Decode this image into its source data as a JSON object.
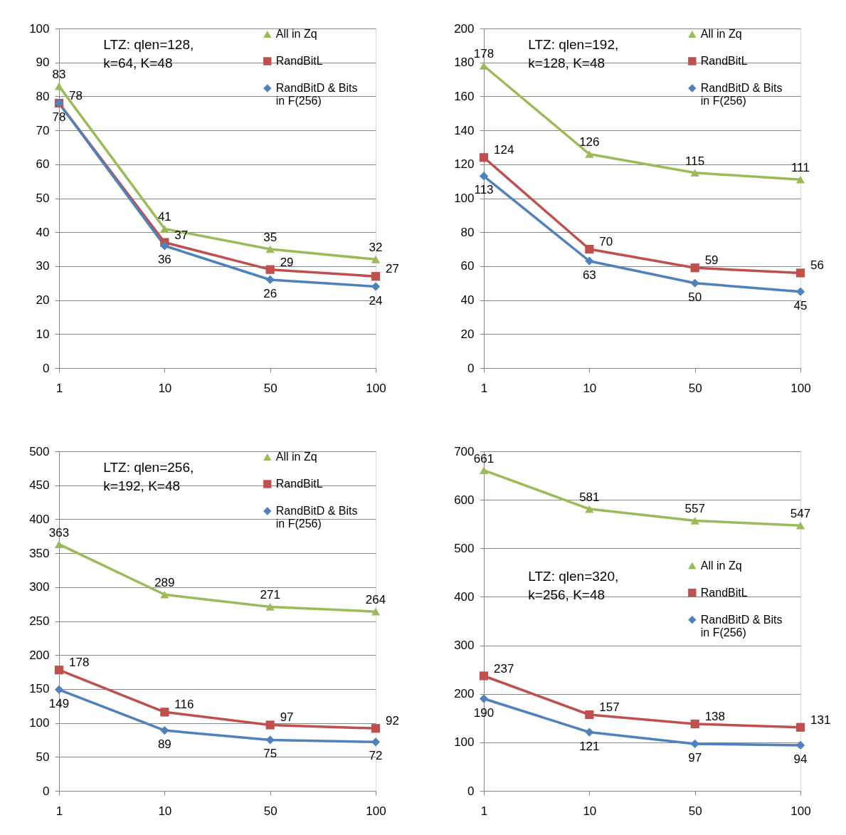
{
  "chart_data": [
    {
      "type": "line",
      "categories": [
        "1",
        "10",
        "50",
        "100"
      ],
      "series": [
        {
          "name": "All in Zq",
          "color": "#9bbb59",
          "marker": "triangle",
          "values": [
            83,
            41,
            35,
            32
          ]
        },
        {
          "name": "RandBitL",
          "color": "#c0504d",
          "marker": "square",
          "values": [
            78,
            37,
            29,
            27
          ]
        },
        {
          "name": "RandBitD & Bits in F(256)",
          "color": "#4f81bd",
          "marker": "diamond",
          "values": [
            78,
            36,
            26,
            24
          ]
        }
      ],
      "ylim": [
        0,
        100
      ],
      "yticks": [
        0,
        10,
        20,
        30,
        40,
        50,
        60,
        70,
        80,
        90,
        100
      ],
      "grid": "y",
      "legend": "top right",
      "data_labels": true,
      "annotations": [
        "LTZ: qlen=128, k=64, K=48"
      ]
    },
    {
      "type": "line",
      "categories": [
        "1",
        "10",
        "50",
        "100"
      ],
      "series": [
        {
          "name": "All in Zq",
          "color": "#9bbb59",
          "marker": "triangle",
          "values": [
            178,
            126,
            115,
            111
          ]
        },
        {
          "name": "RandBitL",
          "color": "#c0504d",
          "marker": "square",
          "values": [
            124,
            70,
            59,
            56
          ]
        },
        {
          "name": "RandBitD & Bits in F(256)",
          "color": "#4f81bd",
          "marker": "diamond",
          "values": [
            113,
            63,
            50,
            45
          ]
        }
      ],
      "ylim": [
        0,
        200
      ],
      "yticks": [
        0,
        20,
        40,
        60,
        80,
        100,
        120,
        140,
        160,
        180,
        200
      ],
      "grid": "y",
      "legend": "top right",
      "data_labels": true,
      "annotations": [
        "LTZ: qlen=192, k=128, K=48"
      ]
    },
    {
      "type": "line",
      "categories": [
        "1",
        "10",
        "50",
        "100"
      ],
      "series": [
        {
          "name": "All in Zq",
          "color": "#9bbb59",
          "marker": "triangle",
          "values": [
            363,
            289,
            271,
            264
          ]
        },
        {
          "name": "RandBitL",
          "color": "#c0504d",
          "marker": "square",
          "values": [
            178,
            116,
            97,
            92
          ]
        },
        {
          "name": "RandBitD & Bits in F(256)",
          "color": "#4f81bd",
          "marker": "diamond",
          "values": [
            149,
            89,
            75,
            72
          ]
        }
      ],
      "ylim": [
        0,
        500
      ],
      "yticks": [
        0,
        50,
        100,
        150,
        200,
        250,
        300,
        350,
        400,
        450,
        500
      ],
      "grid": "y",
      "legend": "top right",
      "data_labels": true,
      "annotations": [
        "LTZ: qlen=256, k=192, K=48"
      ]
    },
    {
      "type": "line",
      "categories": [
        "1",
        "10",
        "50",
        "100"
      ],
      "series": [
        {
          "name": "All in Zq",
          "color": "#9bbb59",
          "marker": "triangle",
          "values": [
            661,
            581,
            557,
            547
          ]
        },
        {
          "name": "RandBitL",
          "color": "#c0504d",
          "marker": "square",
          "values": [
            237,
            157,
            138,
            131
          ]
        },
        {
          "name": "RandBitD & Bits in F(256)",
          "color": "#4f81bd",
          "marker": "diamond",
          "values": [
            190,
            121,
            97,
            94
          ]
        }
      ],
      "ylim": [
        0,
        700
      ],
      "yticks": [
        0,
        100,
        200,
        300,
        400,
        500,
        600,
        700
      ],
      "grid": "y",
      "legend": "right",
      "data_labels": true,
      "annotations": [
        "LTZ: qlen=320, k=256, K=48"
      ]
    }
  ]
}
